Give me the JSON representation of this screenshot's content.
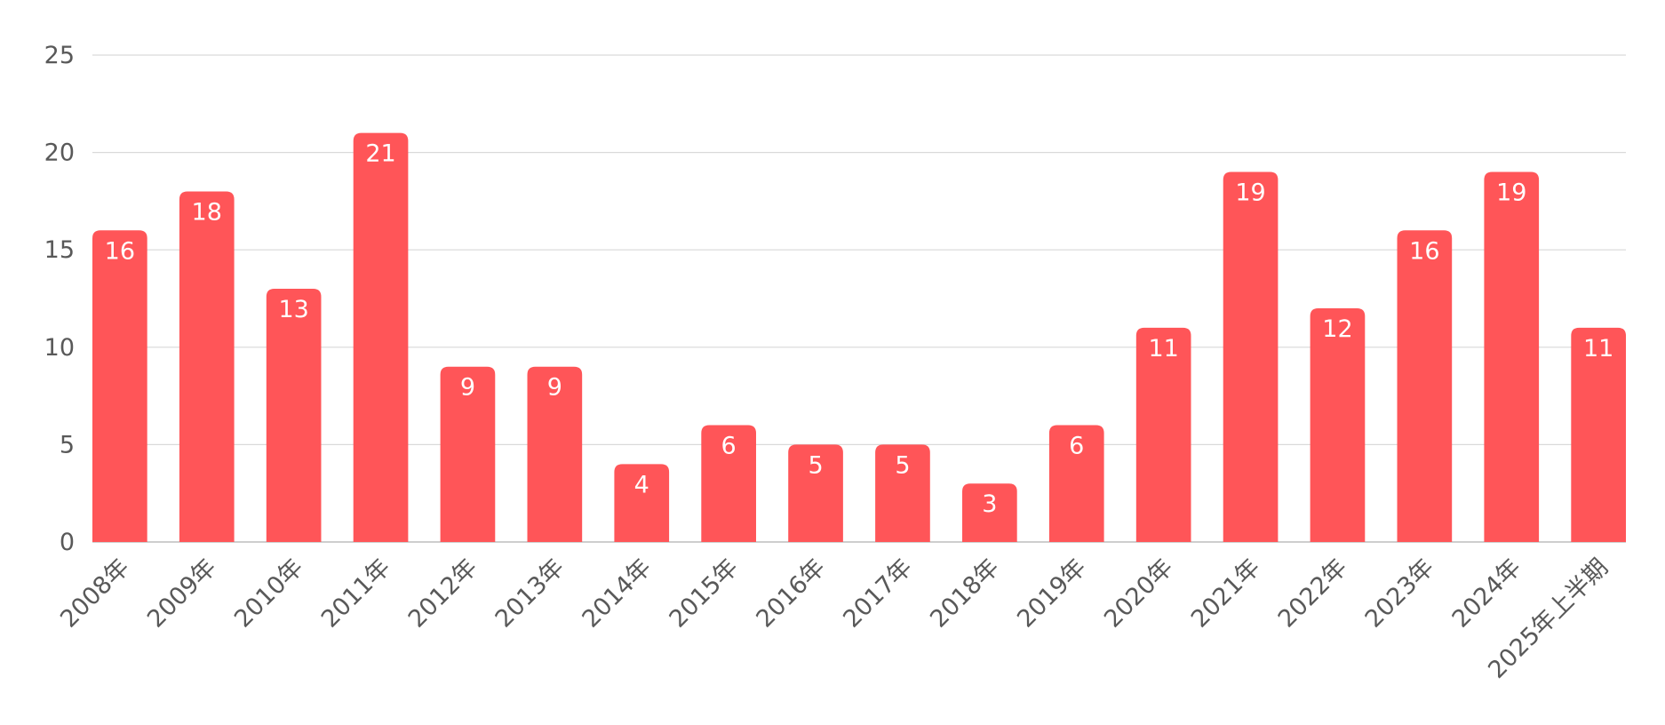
{
  "chart_data": {
    "type": "bar",
    "title": "",
    "xlabel": "",
    "ylabel": "",
    "categories": [
      "2008年",
      "2009年",
      "2010年",
      "2011年",
      "2012年",
      "2013年",
      "2014年",
      "2015年",
      "2016年",
      "2017年",
      "2018年",
      "2019年",
      "2020年",
      "2021年",
      "2022年",
      "2023年",
      "2024年",
      "2025年上半期"
    ],
    "values": [
      16,
      18,
      13,
      21,
      9,
      9,
      4,
      6,
      5,
      5,
      3,
      6,
      11,
      19,
      12,
      16,
      19,
      11
    ],
    "ylim": [
      0,
      25
    ],
    "yticks": [
      0,
      5,
      10,
      15,
      20,
      25
    ],
    "grid": true,
    "legend": "none",
    "data_labels": true,
    "colors": {
      "bar": "#ff5558",
      "grid": "#d9d9d9",
      "text": "#595959",
      "label": "#ffffff"
    }
  }
}
